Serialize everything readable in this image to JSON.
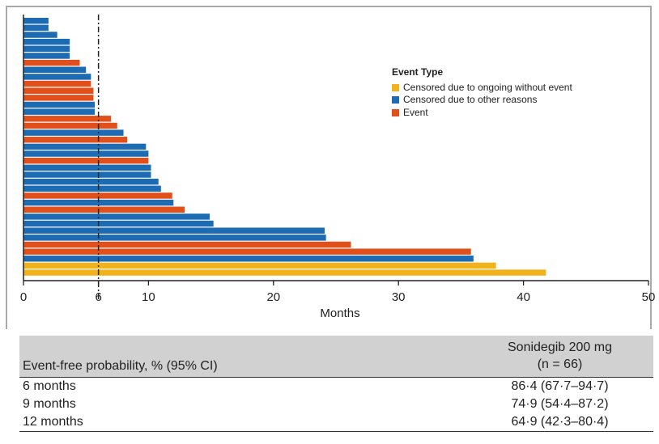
{
  "chart_data": {
    "type": "bar",
    "orientation": "horizontal",
    "xlabel": "Months",
    "xlim": [
      0,
      50
    ],
    "xticks": [
      0,
      6,
      10,
      20,
      30,
      40,
      50
    ],
    "reference_line": 6,
    "legend": {
      "title": "Event Type",
      "placement": "top-right",
      "entries": [
        {
          "name": "Censored due to ongoing without event",
          "color": "#F2B21B"
        },
        {
          "name": "Censored due to other reasons",
          "color": "#1D6BB2"
        },
        {
          "name": "Event",
          "color": "#E1501B"
        }
      ]
    },
    "bars": [
      {
        "value": 2.0,
        "type": "blue"
      },
      {
        "value": 2.0,
        "type": "blue"
      },
      {
        "value": 2.7,
        "type": "blue"
      },
      {
        "value": 3.7,
        "type": "blue"
      },
      {
        "value": 3.7,
        "type": "blue"
      },
      {
        "value": 3.7,
        "type": "blue"
      },
      {
        "value": 4.5,
        "type": "orange"
      },
      {
        "value": 5.0,
        "type": "blue"
      },
      {
        "value": 5.4,
        "type": "blue"
      },
      {
        "value": 5.4,
        "type": "orange"
      },
      {
        "value": 5.6,
        "type": "orange"
      },
      {
        "value": 5.6,
        "type": "orange"
      },
      {
        "value": 5.7,
        "type": "blue"
      },
      {
        "value": 5.7,
        "type": "blue"
      },
      {
        "value": 7.0,
        "type": "orange"
      },
      {
        "value": 7.5,
        "type": "orange"
      },
      {
        "value": 8.0,
        "type": "blue"
      },
      {
        "value": 8.3,
        "type": "orange"
      },
      {
        "value": 9.8,
        "type": "blue"
      },
      {
        "value": 10.0,
        "type": "blue"
      },
      {
        "value": 10.0,
        "type": "orange"
      },
      {
        "value": 10.2,
        "type": "blue"
      },
      {
        "value": 10.2,
        "type": "blue"
      },
      {
        "value": 10.8,
        "type": "blue"
      },
      {
        "value": 11.0,
        "type": "blue"
      },
      {
        "value": 11.9,
        "type": "orange"
      },
      {
        "value": 12.0,
        "type": "blue"
      },
      {
        "value": 12.9,
        "type": "orange"
      },
      {
        "value": 14.9,
        "type": "blue"
      },
      {
        "value": 15.2,
        "type": "blue"
      },
      {
        "value": 24.1,
        "type": "blue"
      },
      {
        "value": 24.2,
        "type": "blue"
      },
      {
        "value": 26.2,
        "type": "orange"
      },
      {
        "value": 35.8,
        "type": "orange"
      },
      {
        "value": 36.0,
        "type": "blue"
      },
      {
        "value": 37.8,
        "type": "yellow"
      },
      {
        "value": 41.8,
        "type": "yellow"
      }
    ]
  },
  "table": {
    "header_left": "Event-free probability, % (95% CI)",
    "header_right_line1": "Sonidegib 200 mg",
    "header_right_line2": "(n = 66)",
    "rows": [
      {
        "label": "6 months",
        "value": "86·4 (67·7–94·7)"
      },
      {
        "label": "9 months",
        "value": "74·9 (54·4–87·2)"
      },
      {
        "label": "12 months",
        "value": "64·9 (42·3–80·4)"
      }
    ]
  }
}
